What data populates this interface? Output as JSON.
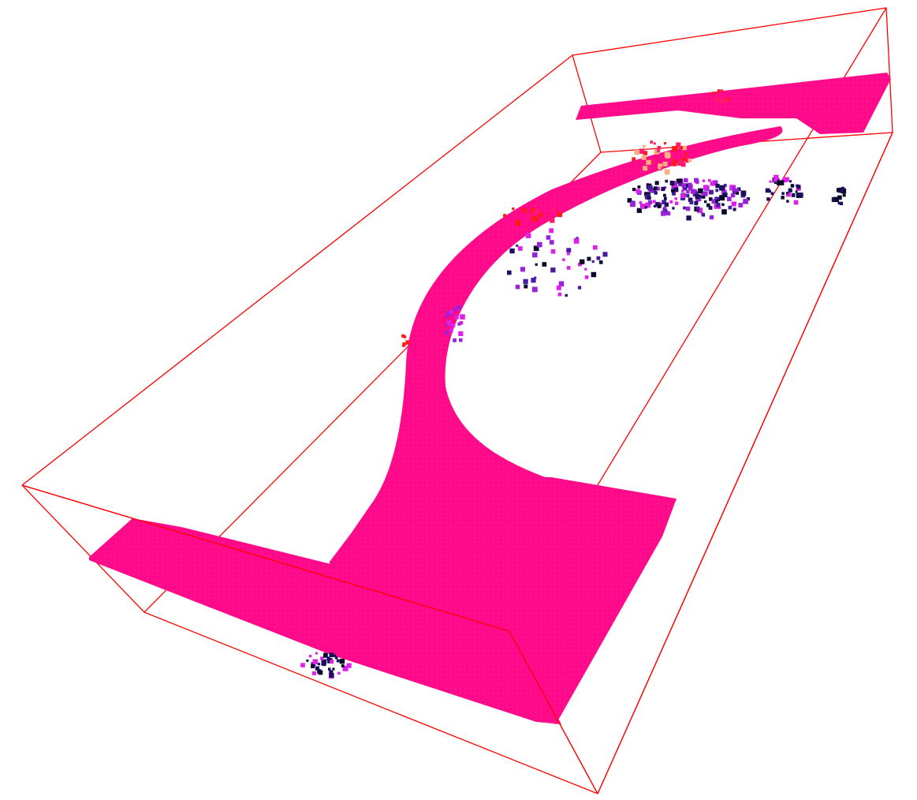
{
  "viewer": {
    "background": "#ffffff",
    "bounding_box_color": "#ff0000",
    "surface_color": "#ff0a8a",
    "colormap": [
      "#0a0a2a",
      "#1a1060",
      "#4a1aa0",
      "#9a22d8",
      "#e020e8",
      "#ff1a6e",
      "#ff1a1a",
      "#ffb080"
    ],
    "objects": [
      "bounding-box",
      "ground-plane-point-cloud",
      "curved-ramp-point-cloud",
      "top-ledge-point-cloud",
      "elevated-scatter-points"
    ]
  }
}
